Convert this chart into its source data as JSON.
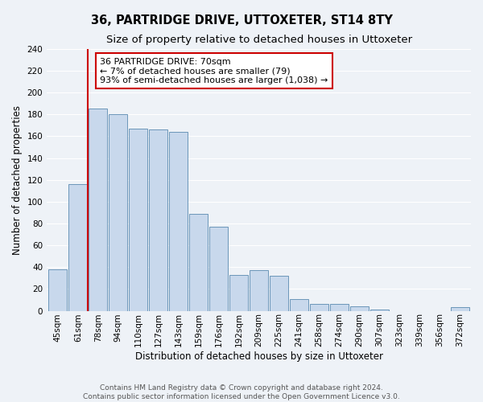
{
  "title": "36, PARTRIDGE DRIVE, UTTOXETER, ST14 8TY",
  "subtitle": "Size of property relative to detached houses in Uttoxeter",
  "xlabel": "Distribution of detached houses by size in Uttoxeter",
  "ylabel": "Number of detached properties",
  "bar_labels": [
    "45sqm",
    "61sqm",
    "78sqm",
    "94sqm",
    "110sqm",
    "127sqm",
    "143sqm",
    "159sqm",
    "176sqm",
    "192sqm",
    "209sqm",
    "225sqm",
    "241sqm",
    "258sqm",
    "274sqm",
    "290sqm",
    "307sqm",
    "323sqm",
    "339sqm",
    "356sqm",
    "372sqm"
  ],
  "bar_heights": [
    38,
    116,
    185,
    180,
    167,
    166,
    164,
    89,
    77,
    33,
    37,
    32,
    11,
    6,
    6,
    4,
    1,
    0,
    0,
    0,
    3
  ],
  "bar_color": "#c8d8ec",
  "bar_edge_color": "#5a8ab0",
  "ylim": [
    0,
    240
  ],
  "yticks": [
    0,
    20,
    40,
    60,
    80,
    100,
    120,
    140,
    160,
    180,
    200,
    220,
    240
  ],
  "property_line_label": "36 PARTRIDGE DRIVE: 70sqm",
  "annotation_line1": "← 7% of detached houses are smaller (79)",
  "annotation_line2": "93% of semi-detached houses are larger (1,038) →",
  "annotation_box_color": "#ffffff",
  "annotation_box_edge_color": "#cc0000",
  "red_line_color": "#cc0000",
  "footer1": "Contains HM Land Registry data © Crown copyright and database right 2024.",
  "footer2": "Contains public sector information licensed under the Open Government Licence v3.0.",
  "bg_color": "#eef2f7",
  "grid_color": "#ffffff",
  "title_fontsize": 10.5,
  "subtitle_fontsize": 9.5,
  "axis_label_fontsize": 8.5,
  "tick_fontsize": 7.5,
  "annotation_fontsize": 8,
  "footer_fontsize": 6.5
}
